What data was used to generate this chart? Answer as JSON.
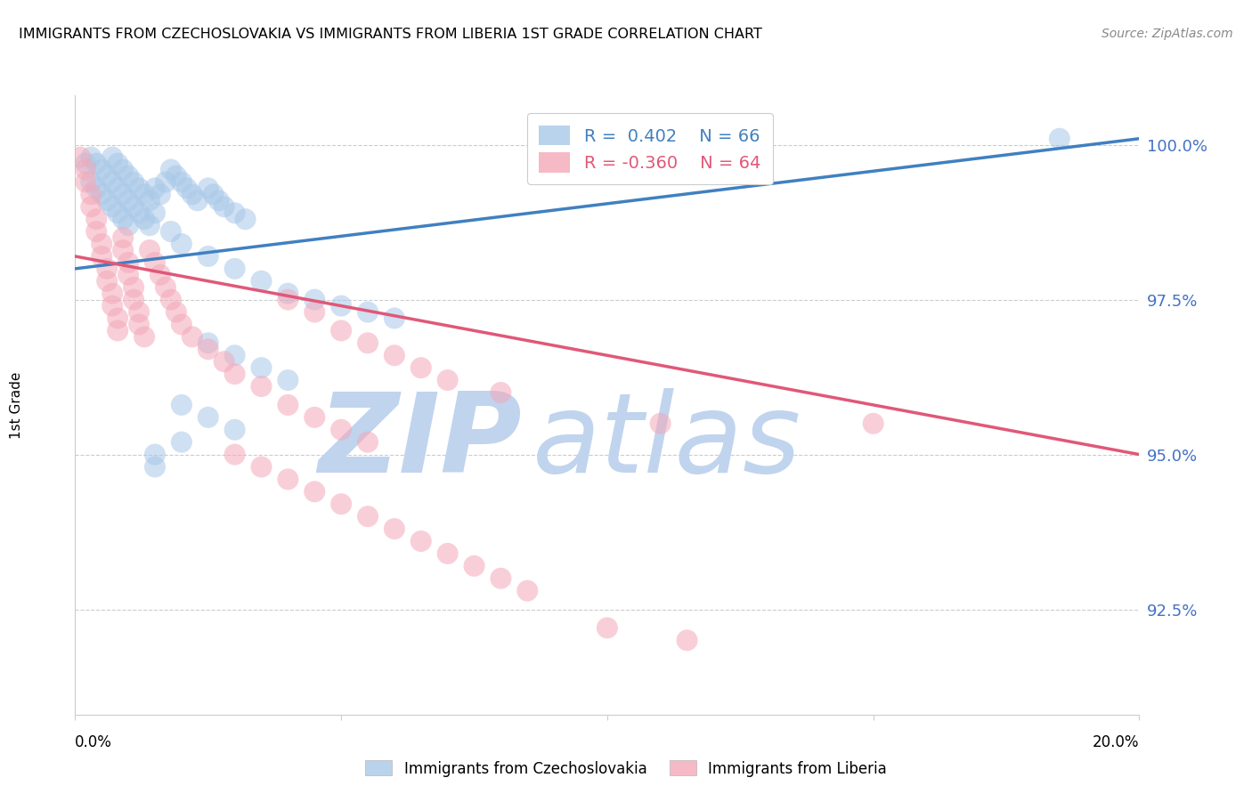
{
  "title": "IMMIGRANTS FROM CZECHOSLOVAKIA VS IMMIGRANTS FROM LIBERIA 1ST GRADE CORRELATION CHART",
  "source": "Source: ZipAtlas.com",
  "ylabel": "1st Grade",
  "ytick_labels": [
    "100.0%",
    "97.5%",
    "95.0%",
    "92.5%"
  ],
  "ytick_values": [
    1.0,
    0.975,
    0.95,
    0.925
  ],
  "xlim": [
    0.0,
    0.2
  ],
  "ylim": [
    0.908,
    1.008
  ],
  "legend_blue_r": "R =  0.402",
  "legend_blue_n": "N = 66",
  "legend_pink_r": "R = -0.360",
  "legend_pink_n": "N = 64",
  "blue_color": "#a8c8e8",
  "pink_color": "#f4a8b8",
  "blue_line_color": "#4080c0",
  "pink_line_color": "#e05878",
  "watermark_zip_color": "#c0d4ee",
  "watermark_atlas_color": "#c0d4ee",
  "blue_scatter": [
    [
      0.002,
      0.997
    ],
    [
      0.003,
      0.998
    ],
    [
      0.003,
      0.994
    ],
    [
      0.004,
      0.997
    ],
    [
      0.004,
      0.993
    ],
    [
      0.005,
      0.996
    ],
    [
      0.005,
      0.992
    ],
    [
      0.006,
      0.995
    ],
    [
      0.006,
      0.991
    ],
    [
      0.007,
      0.998
    ],
    [
      0.007,
      0.994
    ],
    [
      0.007,
      0.99
    ],
    [
      0.008,
      0.997
    ],
    [
      0.008,
      0.993
    ],
    [
      0.008,
      0.989
    ],
    [
      0.009,
      0.996
    ],
    [
      0.009,
      0.992
    ],
    [
      0.009,
      0.988
    ],
    [
      0.01,
      0.995
    ],
    [
      0.01,
      0.991
    ],
    [
      0.01,
      0.987
    ],
    [
      0.011,
      0.994
    ],
    [
      0.011,
      0.99
    ],
    [
      0.012,
      0.993
    ],
    [
      0.012,
      0.989
    ],
    [
      0.013,
      0.992
    ],
    [
      0.013,
      0.988
    ],
    [
      0.014,
      0.991
    ],
    [
      0.014,
      0.987
    ],
    [
      0.015,
      0.993
    ],
    [
      0.015,
      0.989
    ],
    [
      0.016,
      0.992
    ],
    [
      0.017,
      0.994
    ],
    [
      0.018,
      0.996
    ],
    [
      0.019,
      0.995
    ],
    [
      0.02,
      0.994
    ],
    [
      0.021,
      0.993
    ],
    [
      0.022,
      0.992
    ],
    [
      0.023,
      0.991
    ],
    [
      0.025,
      0.993
    ],
    [
      0.026,
      0.992
    ],
    [
      0.027,
      0.991
    ],
    [
      0.028,
      0.99
    ],
    [
      0.03,
      0.989
    ],
    [
      0.032,
      0.988
    ],
    [
      0.018,
      0.986
    ],
    [
      0.02,
      0.984
    ],
    [
      0.025,
      0.982
    ],
    [
      0.03,
      0.98
    ],
    [
      0.035,
      0.978
    ],
    [
      0.04,
      0.976
    ],
    [
      0.045,
      0.975
    ],
    [
      0.05,
      0.974
    ],
    [
      0.055,
      0.973
    ],
    [
      0.06,
      0.972
    ],
    [
      0.025,
      0.968
    ],
    [
      0.03,
      0.966
    ],
    [
      0.035,
      0.964
    ],
    [
      0.04,
      0.962
    ],
    [
      0.02,
      0.958
    ],
    [
      0.025,
      0.956
    ],
    [
      0.03,
      0.954
    ],
    [
      0.02,
      0.952
    ],
    [
      0.015,
      0.95
    ],
    [
      0.015,
      0.948
    ],
    [
      0.185,
      1.001
    ]
  ],
  "pink_scatter": [
    [
      0.001,
      0.998
    ],
    [
      0.002,
      0.996
    ],
    [
      0.002,
      0.994
    ],
    [
      0.003,
      0.992
    ],
    [
      0.003,
      0.99
    ],
    [
      0.004,
      0.988
    ],
    [
      0.004,
      0.986
    ],
    [
      0.005,
      0.984
    ],
    [
      0.005,
      0.982
    ],
    [
      0.006,
      0.98
    ],
    [
      0.006,
      0.978
    ],
    [
      0.007,
      0.976
    ],
    [
      0.007,
      0.974
    ],
    [
      0.008,
      0.972
    ],
    [
      0.008,
      0.97
    ],
    [
      0.009,
      0.985
    ],
    [
      0.009,
      0.983
    ],
    [
      0.01,
      0.981
    ],
    [
      0.01,
      0.979
    ],
    [
      0.011,
      0.977
    ],
    [
      0.011,
      0.975
    ],
    [
      0.012,
      0.973
    ],
    [
      0.012,
      0.971
    ],
    [
      0.013,
      0.969
    ],
    [
      0.014,
      0.983
    ],
    [
      0.015,
      0.981
    ],
    [
      0.016,
      0.979
    ],
    [
      0.017,
      0.977
    ],
    [
      0.018,
      0.975
    ],
    [
      0.019,
      0.973
    ],
    [
      0.02,
      0.971
    ],
    [
      0.022,
      0.969
    ],
    [
      0.025,
      0.967
    ],
    [
      0.028,
      0.965
    ],
    [
      0.03,
      0.963
    ],
    [
      0.035,
      0.961
    ],
    [
      0.04,
      0.975
    ],
    [
      0.045,
      0.973
    ],
    [
      0.05,
      0.97
    ],
    [
      0.055,
      0.968
    ],
    [
      0.06,
      0.966
    ],
    [
      0.065,
      0.964
    ],
    [
      0.07,
      0.962
    ],
    [
      0.08,
      0.96
    ],
    [
      0.04,
      0.958
    ],
    [
      0.045,
      0.956
    ],
    [
      0.05,
      0.954
    ],
    [
      0.055,
      0.952
    ],
    [
      0.03,
      0.95
    ],
    [
      0.035,
      0.948
    ],
    [
      0.04,
      0.946
    ],
    [
      0.045,
      0.944
    ],
    [
      0.05,
      0.942
    ],
    [
      0.055,
      0.94
    ],
    [
      0.06,
      0.938
    ],
    [
      0.065,
      0.936
    ],
    [
      0.07,
      0.934
    ],
    [
      0.075,
      0.932
    ],
    [
      0.08,
      0.93
    ],
    [
      0.085,
      0.928
    ],
    [
      0.11,
      0.955
    ],
    [
      0.15,
      0.955
    ],
    [
      0.1,
      0.922
    ],
    [
      0.115,
      0.92
    ]
  ],
  "blue_line_x": [
    0.0,
    0.2
  ],
  "blue_line_y": [
    0.98,
    1.001
  ],
  "pink_line_x": [
    0.0,
    0.2
  ],
  "pink_line_y": [
    0.982,
    0.95
  ]
}
